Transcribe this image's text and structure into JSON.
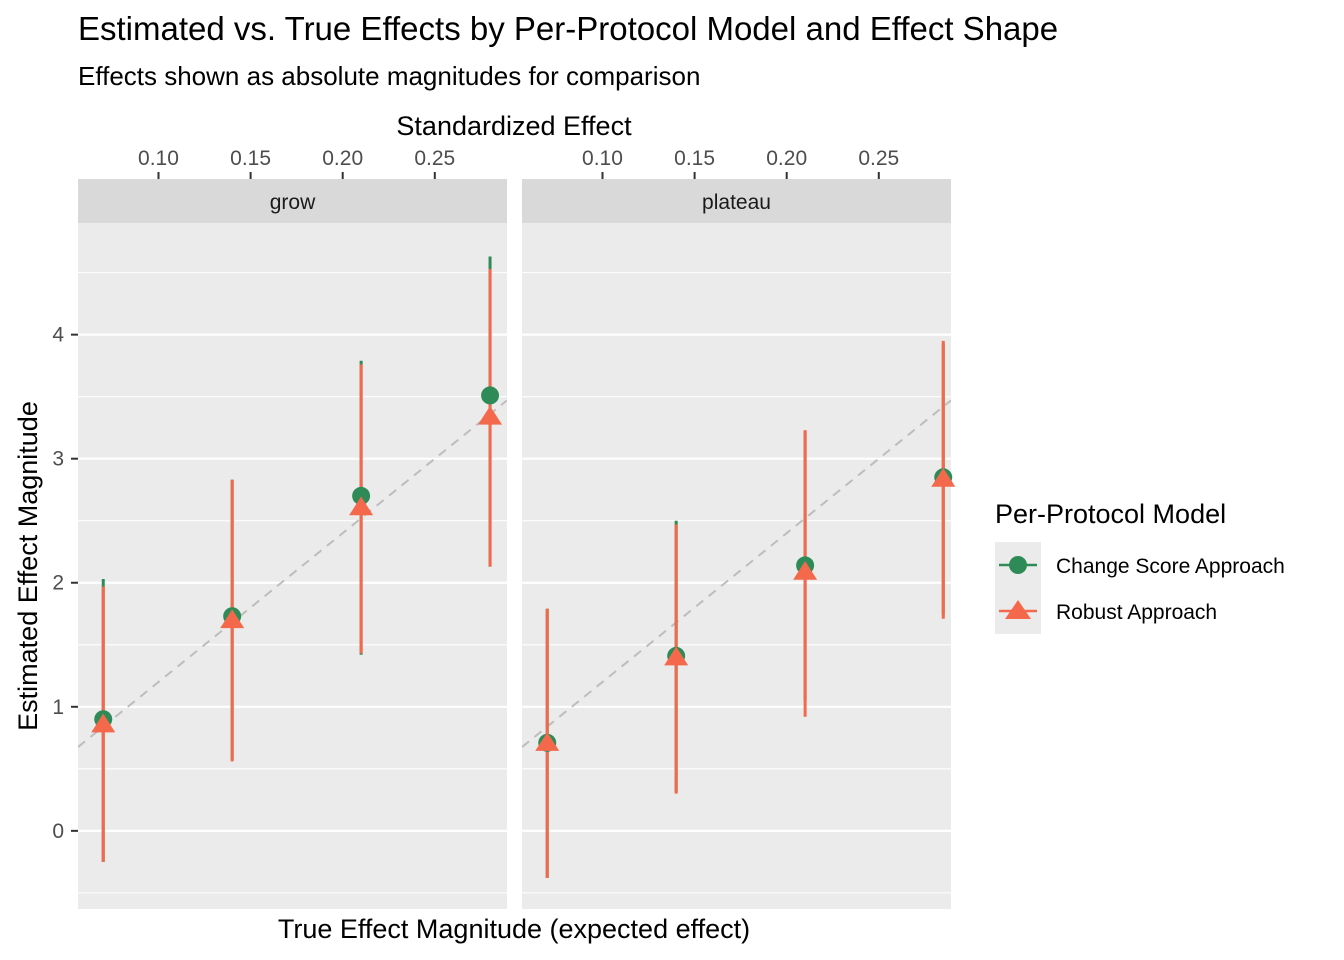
{
  "title": "Estimated vs. True Effects by Per-Protocol Model and Effect Shape",
  "subtitle": "Effects shown as absolute magnitudes for comparison",
  "colors": {
    "panel_bg": "#EBEBEB",
    "strip_bg": "#D9D9D9",
    "grid": "#FFFFFF",
    "ref_line": "#BDBDBD",
    "change_score": "#2E8B57",
    "robust": "#F4694B"
  },
  "chart_data": {
    "type": "scatter",
    "facets": [
      "grow",
      "plateau"
    ],
    "xlabel": "True Effect Magnitude (expected effect)",
    "ylabel": "Estimated Effect Magnitude",
    "secondary_xlabel": "Standardized Effect",
    "secondary_x_ticks": [
      "0.10",
      "0.15",
      "0.20",
      "0.25"
    ],
    "y_ticks": [
      "0",
      "1",
      "2",
      "3",
      "4"
    ],
    "ylim": [
      -0.63,
      4.9
    ],
    "std_lim": [
      0.0563,
      0.2892
    ],
    "reference_line": "y = x (dashed)",
    "legend": {
      "title": "Per-Protocol Model",
      "placement": "right",
      "entries": [
        "Change Score Approach",
        "Robust Approach"
      ]
    },
    "series": [
      {
        "name": "Change Score Approach",
        "shape": "circle",
        "points": [
          {
            "facet": "grow",
            "std_effect": 0.07,
            "estimate": 0.9,
            "lower": -0.25,
            "upper": 2.03
          },
          {
            "facet": "grow",
            "std_effect": 0.14,
            "estimate": 1.73,
            "lower": 0.57,
            "upper": 2.83
          },
          {
            "facet": "grow",
            "std_effect": 0.21,
            "estimate": 2.7,
            "lower": 1.42,
            "upper": 3.79
          },
          {
            "facet": "grow",
            "std_effect": 0.28,
            "estimate": 3.51,
            "lower": 2.13,
            "upper": 4.63
          },
          {
            "facet": "plateau",
            "std_effect": 0.07,
            "estimate": 0.71,
            "lower": -0.38,
            "upper": 1.79
          },
          {
            "facet": "plateau",
            "std_effect": 0.14,
            "estimate": 1.41,
            "lower": 0.31,
            "upper": 2.5
          },
          {
            "facet": "plateau",
            "std_effect": 0.21,
            "estimate": 2.14,
            "lower": 1.05,
            "upper": 3.22
          },
          {
            "facet": "plateau",
            "std_effect": 0.285,
            "estimate": 2.85,
            "lower": 1.74,
            "upper": 3.93
          }
        ]
      },
      {
        "name": "Robust Approach",
        "shape": "triangle",
        "points": [
          {
            "facet": "grow",
            "std_effect": 0.07,
            "estimate": 0.86,
            "lower": -0.25,
            "upper": 1.97
          },
          {
            "facet": "grow",
            "std_effect": 0.14,
            "estimate": 1.7,
            "lower": 0.56,
            "upper": 2.83
          },
          {
            "facet": "grow",
            "std_effect": 0.21,
            "estimate": 2.61,
            "lower": 1.43,
            "upper": 3.76
          },
          {
            "facet": "grow",
            "std_effect": 0.28,
            "estimate": 3.34,
            "lower": 2.13,
            "upper": 4.53
          },
          {
            "facet": "plateau",
            "std_effect": 0.07,
            "estimate": 0.71,
            "lower": -0.38,
            "upper": 1.79
          },
          {
            "facet": "plateau",
            "std_effect": 0.14,
            "estimate": 1.4,
            "lower": 0.3,
            "upper": 2.47
          },
          {
            "facet": "plateau",
            "std_effect": 0.21,
            "estimate": 2.09,
            "lower": 0.92,
            "upper": 3.23
          },
          {
            "facet": "plateau",
            "std_effect": 0.285,
            "estimate": 2.84,
            "lower": 1.71,
            "upper": 3.95
          }
        ]
      }
    ]
  }
}
